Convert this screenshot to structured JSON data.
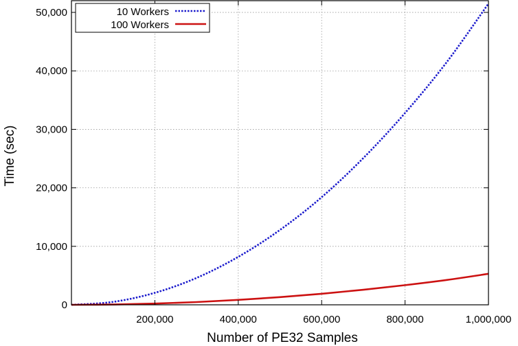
{
  "chart_data": {
    "type": "line",
    "title": "",
    "xlabel": "Number of PE32 Samples",
    "ylabel": "Time (sec)",
    "xlim": [
      0,
      1000000
    ],
    "ylim": [
      0,
      52000
    ],
    "x_ticks": [
      200000,
      400000,
      600000,
      800000,
      1000000
    ],
    "x_tick_labels": [
      "200,000",
      "400,000",
      "600,000",
      "800,000",
      "1,000,000"
    ],
    "y_ticks": [
      0,
      10000,
      20000,
      30000,
      40000,
      50000
    ],
    "y_tick_labels": [
      "0",
      "10,000",
      "20,000",
      "30,000",
      "40,000",
      "50,000"
    ],
    "grid": true,
    "legend_position": "top-left",
    "x": [
      0,
      100000,
      200000,
      300000,
      400000,
      500000,
      600000,
      700000,
      800000,
      900000,
      1000000
    ],
    "series": [
      {
        "name": "10 Workers",
        "color": "#1a1acc",
        "style": "dotted",
        "values": [
          0,
          500,
          2050,
          4600,
          8200,
          12800,
          18400,
          25100,
          32800,
          41500,
          51500
        ]
      },
      {
        "name": "100 Workers",
        "color": "#cc1111",
        "style": "solid",
        "values": [
          0,
          50,
          210,
          470,
          840,
          1310,
          1890,
          2570,
          3360,
          4250,
          5300
        ]
      }
    ]
  }
}
